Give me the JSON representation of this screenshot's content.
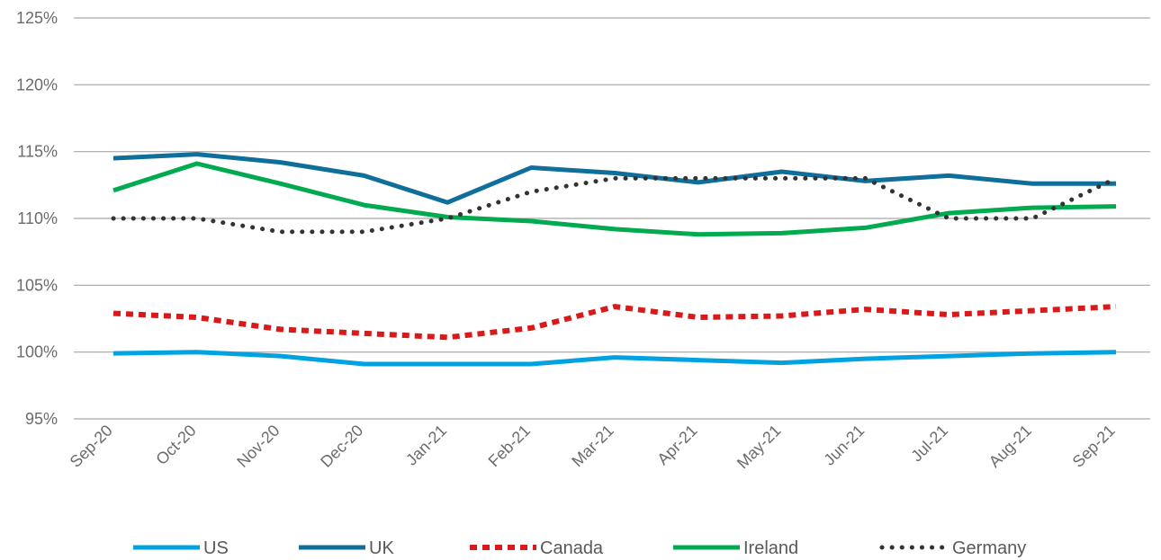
{
  "chart_data": {
    "type": "line",
    "title": "",
    "xlabel": "",
    "ylabel": "",
    "categories": [
      "Sep-20",
      "Oct-20",
      "Nov-20",
      "Dec-20",
      "Jan-21",
      "Feb-21",
      "Mar-21",
      "Apr-21",
      "May-21",
      "Jun-21",
      "Jul-21",
      "Aug-21",
      "Sep-21"
    ],
    "y_ticks": [
      "95%",
      "100%",
      "105%",
      "110%",
      "115%",
      "120%",
      "125%"
    ],
    "ylim": [
      95,
      125
    ],
    "y_unit": "%",
    "grid": true,
    "legend_position": "bottom",
    "series": [
      {
        "name": "US",
        "color": "#00a3e0",
        "style": "solid",
        "values": [
          99.9,
          100.0,
          99.7,
          99.1,
          99.1,
          99.1,
          99.6,
          99.4,
          99.2,
          99.5,
          99.7,
          99.9,
          100.0
        ]
      },
      {
        "name": "UK",
        "color": "#0f6e9a",
        "style": "solid",
        "values": [
          114.5,
          114.8,
          114.2,
          113.2,
          111.2,
          113.8,
          113.4,
          112.7,
          113.5,
          112.8,
          113.2,
          112.6,
          112.6
        ]
      },
      {
        "name": "Canada",
        "color": "#d91a1a",
        "style": "dashed",
        "values": [
          102.9,
          102.6,
          101.7,
          101.4,
          101.1,
          101.8,
          103.4,
          102.6,
          102.7,
          103.2,
          102.8,
          103.1,
          103.4
        ]
      },
      {
        "name": "Ireland",
        "color": "#00aa4f",
        "style": "solid",
        "values": [
          112.1,
          114.1,
          112.6,
          111.0,
          110.1,
          109.8,
          109.2,
          108.8,
          108.9,
          109.3,
          110.4,
          110.8,
          110.9
        ]
      },
      {
        "name": "Germany",
        "color": "#333333",
        "style": "dotted",
        "values": [
          110.0,
          110.0,
          109.0,
          109.0,
          110.0,
          112.0,
          113.0,
          113.0,
          113.0,
          113.0,
          110.0,
          110.0,
          113.0
        ]
      }
    ]
  }
}
